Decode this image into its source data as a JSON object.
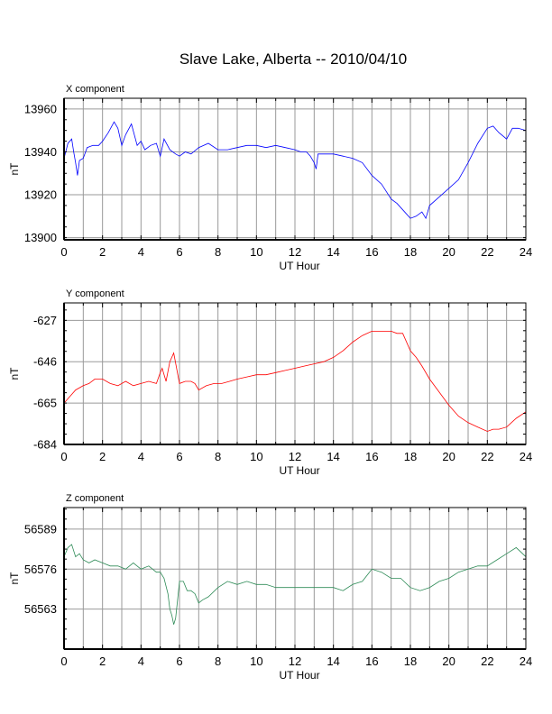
{
  "title": "Slave Lake, Alberta -- 2010/04/10",
  "chart_data": [
    {
      "type": "line",
      "component": "X component",
      "xlabel": "UT Hour",
      "ylabel": "nT",
      "color": "#0000ff",
      "xlim": [
        0,
        24
      ],
      "ylim": [
        13899,
        13965
      ],
      "xticks": [
        0,
        2,
        4,
        6,
        8,
        10,
        12,
        14,
        16,
        18,
        20,
        22,
        24
      ],
      "yticks": [
        13900,
        13920,
        13940,
        13960
      ],
      "grid": true,
      "series": [
        {
          "x": [
            0,
            0.2,
            0.4,
            0.5,
            0.6,
            0.7,
            0.8,
            1.0,
            1.2,
            1.5,
            1.8,
            2.0,
            2.3,
            2.6,
            2.8,
            3.0,
            3.2,
            3.5,
            3.8,
            4.0,
            4.2,
            4.5,
            4.8,
            5.0,
            5.2,
            5.5,
            5.8,
            6.0,
            6.3,
            6.6,
            7.0,
            7.5,
            8.0,
            8.5,
            9.0,
            9.5,
            10.0,
            10.5,
            11.0,
            11.5,
            12.0,
            12.3,
            12.6,
            12.8,
            13.0,
            13.1,
            13.2,
            13.5,
            14.0,
            14.5,
            15.0,
            15.5,
            16.0,
            16.5,
            17.0,
            17.3,
            17.6,
            18.0,
            18.3,
            18.6,
            18.8,
            19.0,
            19.5,
            20.0,
            20.5,
            21.0,
            21.5,
            22.0,
            22.3,
            22.6,
            23.0,
            23.3,
            23.6,
            24.0
          ],
          "y": [
            13937,
            13944,
            13946,
            13940,
            13935,
            13929,
            13936,
            13937,
            13942,
            13943,
            13943,
            13945,
            13949,
            13954,
            13951,
            13943,
            13948,
            13953,
            13943,
            13945,
            13941,
            13943,
            13944,
            13938,
            13946,
            13941,
            13939,
            13938,
            13940,
            13939,
            13942,
            13944,
            13941,
            13941,
            13942,
            13943,
            13943,
            13942,
            13943,
            13942,
            13941,
            13940,
            13940,
            13938,
            13935,
            13932,
            13939,
            13939,
            13939,
            13938,
            13937,
            13935,
            13929,
            13925,
            13918,
            13916,
            13913,
            13909,
            13910,
            13912,
            13909,
            13915,
            13919,
            13923,
            13927,
            13935,
            13944,
            13951,
            13952,
            13949,
            13946,
            13951,
            13951,
            13950
          ]
        }
      ]
    },
    {
      "type": "line",
      "component": "Y component",
      "xlabel": "UT Hour",
      "ylabel": "nT",
      "color": "#ff0000",
      "xlim": [
        0,
        24
      ],
      "ylim": [
        -684,
        -619
      ],
      "xticks": [
        0,
        2,
        4,
        6,
        8,
        10,
        12,
        14,
        16,
        18,
        20,
        22,
        24
      ],
      "yticks": [
        -627,
        -646,
        -665,
        -684
      ],
      "grid": true,
      "series": [
        {
          "x": [
            0,
            0.3,
            0.6,
            1.0,
            1.3,
            1.6,
            2.0,
            2.4,
            2.8,
            3.2,
            3.6,
            4.0,
            4.4,
            4.8,
            5.0,
            5.1,
            5.3,
            5.5,
            5.7,
            6.0,
            6.3,
            6.6,
            6.8,
            7.0,
            7.4,
            7.8,
            8.2,
            8.6,
            9.0,
            9.5,
            10.0,
            10.5,
            11.0,
            11.5,
            12.0,
            12.5,
            13.0,
            13.5,
            14.0,
            14.5,
            15.0,
            15.5,
            16.0,
            16.5,
            17.0,
            17.3,
            17.6,
            18.0,
            18.3,
            18.6,
            19.0,
            19.5,
            20.0,
            20.5,
            21.0,
            21.5,
            22.0,
            22.3,
            22.6,
            23.0,
            23.5,
            24.0
          ],
          "y": [
            -665,
            -662,
            -659,
            -657,
            -656,
            -654,
            -654,
            -656,
            -657,
            -655,
            -657,
            -656,
            -655,
            -656,
            -651,
            -649,
            -655,
            -646,
            -642,
            -656,
            -655,
            -655,
            -656,
            -659,
            -657,
            -656,
            -656,
            -655,
            -654,
            -653,
            -652,
            -652,
            -651,
            -650,
            -649,
            -648,
            -647,
            -646,
            -644,
            -641,
            -637,
            -634,
            -632,
            -632,
            -632,
            -633,
            -633,
            -641,
            -644,
            -648,
            -654,
            -660,
            -666,
            -671,
            -674,
            -676,
            -678,
            -677,
            -677,
            -676,
            -672,
            -669
          ]
        }
      ]
    },
    {
      "type": "line",
      "component": "Z component",
      "xlabel": "UT Hour",
      "ylabel": "nT",
      "color": "#2e8b57",
      "xlim": [
        0,
        24
      ],
      "ylim": [
        56550,
        56596
      ],
      "xticks": [
        0,
        2,
        4,
        6,
        8,
        10,
        12,
        14,
        16,
        18,
        20,
        22,
        24
      ],
      "yticks": [
        56563,
        56576,
        56589
      ],
      "grid": true,
      "series": [
        {
          "x": [
            0,
            0.2,
            0.4,
            0.6,
            0.8,
            1.0,
            1.3,
            1.6,
            2.0,
            2.4,
            2.8,
            3.2,
            3.6,
            4.0,
            4.4,
            4.8,
            5.0,
            5.2,
            5.4,
            5.5,
            5.6,
            5.7,
            5.8,
            5.9,
            6.0,
            6.2,
            6.4,
            6.6,
            6.8,
            7.0,
            7.2,
            7.5,
            8.0,
            8.5,
            9.0,
            9.5,
            10.0,
            10.5,
            11.0,
            11.5,
            12.0,
            12.5,
            13.0,
            13.5,
            14.0,
            14.5,
            15.0,
            15.5,
            16.0,
            16.5,
            17.0,
            17.5,
            18.0,
            18.5,
            19.0,
            19.5,
            20.0,
            20.5,
            21.0,
            21.5,
            22.0,
            22.5,
            23.0,
            23.5,
            24.0
          ],
          "y": [
            56580,
            56583,
            56584,
            56580,
            56581,
            56579,
            56578,
            56579,
            56578,
            56577,
            56577,
            56576,
            56578,
            56576,
            56577,
            56575,
            56575,
            56573,
            56568,
            56563,
            56561,
            56558,
            56560,
            56566,
            56572,
            56572,
            56569,
            56569,
            56568,
            56565,
            56566,
            56567,
            56570,
            56572,
            56571,
            56572,
            56571,
            56571,
            56570,
            56570,
            56570,
            56570,
            56570,
            56570,
            56570,
            56569,
            56571,
            56572,
            56576,
            56575,
            56573,
            56573,
            56570,
            56569,
            56570,
            56572,
            56573,
            56575,
            56576,
            56577,
            56577,
            56579,
            56581,
            56583,
            56580
          ]
        }
      ]
    }
  ]
}
